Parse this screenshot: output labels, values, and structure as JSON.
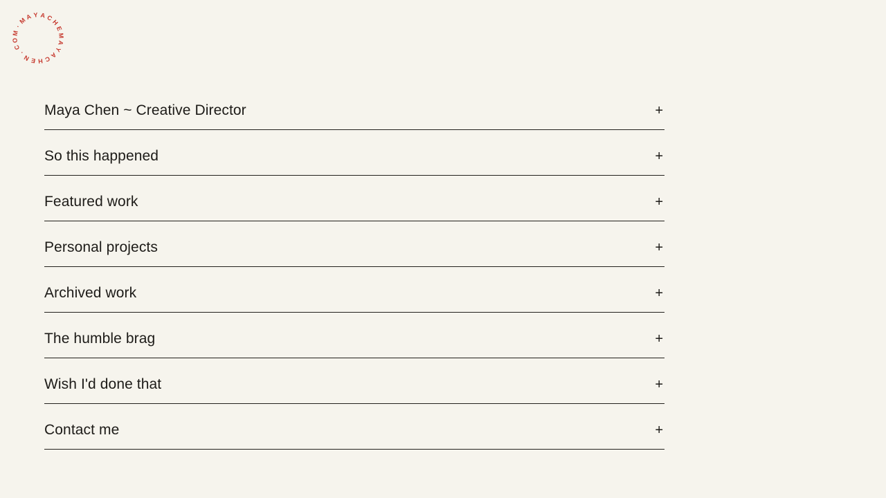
{
  "page": {
    "background_color": "#f6f4ed",
    "text_color": "#1d1b18",
    "rule_color": "#22201c"
  },
  "logo": {
    "circular_text": "MAYACHEMAYACHEN.COM·",
    "color": "#c6392e"
  },
  "accordion": {
    "toggle_icon": "+",
    "items": [
      {
        "label": "Maya Chen ~ Creative Director"
      },
      {
        "label": "So this happened"
      },
      {
        "label": "Featured work"
      },
      {
        "label": "Personal projects"
      },
      {
        "label": "Archived work"
      },
      {
        "label": "The humble brag"
      },
      {
        "label": "Wish I'd done that"
      },
      {
        "label": "Contact me"
      }
    ]
  }
}
